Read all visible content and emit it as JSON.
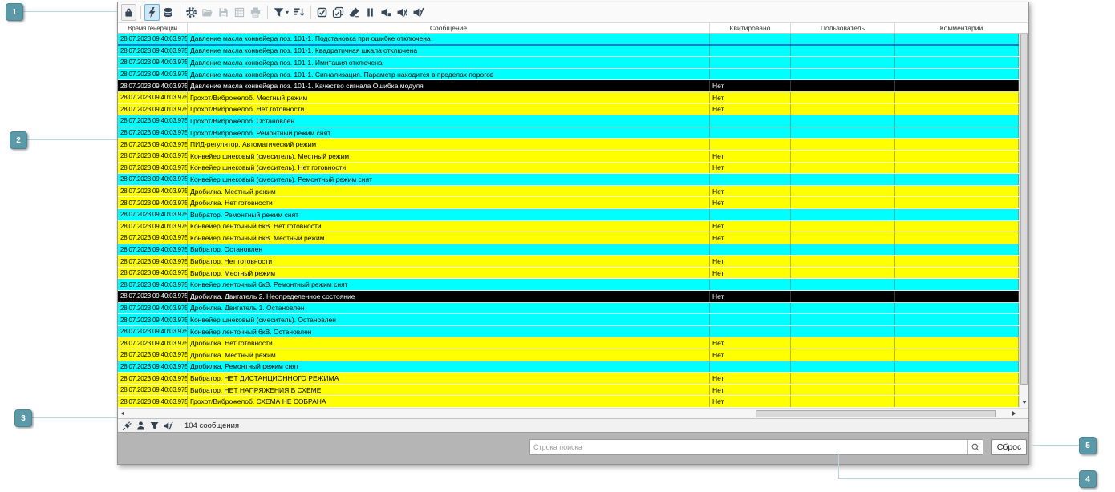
{
  "toolbar": {
    "groups": [
      [
        {
          "icon": "lock",
          "state": "framed"
        }
      ],
      [
        {
          "icon": "flash",
          "state": "active"
        },
        {
          "icon": "database",
          "state": "normal"
        }
      ],
      [
        {
          "icon": "gear",
          "state": "normal"
        },
        {
          "icon": "folder-open",
          "state": "disabled"
        },
        {
          "icon": "save",
          "state": "disabled"
        },
        {
          "icon": "export-excel",
          "state": "disabled"
        },
        {
          "icon": "print",
          "state": "disabled"
        }
      ],
      [
        {
          "icon": "filter",
          "state": "normal"
        },
        {
          "icon": "sort-desc",
          "state": "normal"
        }
      ],
      [
        {
          "icon": "ack-one",
          "state": "normal"
        },
        {
          "icon": "ack-all",
          "state": "normal"
        },
        {
          "icon": "eraser",
          "state": "normal"
        },
        {
          "icon": "pause",
          "state": "normal"
        },
        {
          "icon": "sound-box",
          "state": "normal"
        },
        {
          "icon": "sound-waves",
          "state": "normal"
        },
        {
          "icon": "sound-mute",
          "state": "normal"
        }
      ]
    ]
  },
  "table": {
    "columns": [
      "Время генерации",
      "Сообщение",
      "Квитировано",
      "Пользователь",
      "Комментарий"
    ],
    "rows": [
      {
        "t": "28.07.2023 09:40:03.975",
        "m": "Давление масла конвейера поз. 101-1. Подстановка при ошибке отключена",
        "a": "",
        "c": "c",
        "sel": true
      },
      {
        "t": "28.07.2023 09:40:03.975",
        "m": "Давление масла конвейера поз. 101-1. Квадратичная шкала отключена",
        "a": "",
        "c": "c"
      },
      {
        "t": "28.07.2023 09:40:03.975",
        "m": "Давление масла конвейера поз. 101-1. Имитация отключена",
        "a": "",
        "c": "c"
      },
      {
        "t": "28.07.2023 09:40:03.975",
        "m": "Давление масла конвейера поз. 101-1. Сигнализация. Параметр находится в пределах порогов",
        "a": "",
        "c": "c"
      },
      {
        "t": "28.07.2023 09:40:03.975",
        "m": "Давление масла конвейера поз. 101-1. Качество сигнала Ошибка модуля",
        "a": "Нет",
        "c": "k"
      },
      {
        "t": "28.07.2023 09:40:03.975",
        "m": "Грохот/Виброжелоб. Местный режим",
        "a": "Нет",
        "c": "y"
      },
      {
        "t": "28.07.2023 09:40:03.975",
        "m": "Грохот/Виброжелоб. Нет готовности",
        "a": "Нет",
        "c": "y"
      },
      {
        "t": "28.07.2023 09:40:03.975",
        "m": "Грохот/Виброжелоб. Остановлен",
        "a": "",
        "c": "c"
      },
      {
        "t": "28.07.2023 09:40:03.975",
        "m": "Грохот/Виброжелоб. Ремонтный режим снят",
        "a": "",
        "c": "c"
      },
      {
        "t": "28.07.2023 09:40:03.975",
        "m": "ПИД-регулятор. Автоматический режим",
        "a": "",
        "c": "y"
      },
      {
        "t": "28.07.2023 09:40:03.975",
        "m": "Конвейер шнековый (смеситель). Местный режим",
        "a": "Нет",
        "c": "y"
      },
      {
        "t": "28.07.2023 09:40:03.975",
        "m": "Конвейер шнековый (смеситель). Нет готовности",
        "a": "Нет",
        "c": "y"
      },
      {
        "t": "28.07.2023 09:40:03.975",
        "m": "Конвейер шнековый (смеситель). Ремонтный режим снят",
        "a": "",
        "c": "c"
      },
      {
        "t": "28.07.2023 09:40:03.975",
        "m": "Дробилка. Местный режим",
        "a": "Нет",
        "c": "y"
      },
      {
        "t": "28.07.2023 09:40:03.975",
        "m": "Дробилка. Нет готовности",
        "a": "Нет",
        "c": "y"
      },
      {
        "t": "28.07.2023 09:40:03.975",
        "m": "Вибратор. Ремонтный режим снят",
        "a": "",
        "c": "c"
      },
      {
        "t": "28.07.2023 09:40:03.975",
        "m": "Конвейер ленточный 6кВ. Нет готовности",
        "a": "Нет",
        "c": "y"
      },
      {
        "t": "28.07.2023 09:40:03.975",
        "m": "Конвейер ленточный 6кВ. Местный режим",
        "a": "Нет",
        "c": "y"
      },
      {
        "t": "28.07.2023 09:40:03.975",
        "m": "Вибратор. Остановлен",
        "a": "",
        "c": "c"
      },
      {
        "t": "28.07.2023 09:40:03.975",
        "m": "Вибратор. Нет готовности",
        "a": "Нет",
        "c": "y"
      },
      {
        "t": "28.07.2023 09:40:03.975",
        "m": "Вибратор. Местный режим",
        "a": "Нет",
        "c": "y"
      },
      {
        "t": "28.07.2023 09:40:03.975",
        "m": "Конвейер ленточный 6кВ. Ремонтный режим снят",
        "a": "",
        "c": "c"
      },
      {
        "t": "28.07.2023 09:40:03.975",
        "m": "Дробилка. Двигатель 2. Неопределенное состояние",
        "a": "Нет",
        "c": "k"
      },
      {
        "t": "28.07.2023 09:40:03.975",
        "m": "Дробилка. Двигатель 1. Остановлен",
        "a": "",
        "c": "c"
      },
      {
        "t": "28.07.2023 09:40:03.975",
        "m": "Конвейер шнековый (смеситель). Остановлен",
        "a": "",
        "c": "c"
      },
      {
        "t": "28.07.2023 09:40:03.975",
        "m": "Конвейер ленточный 6кВ. Остановлен",
        "a": "",
        "c": "c"
      },
      {
        "t": "28.07.2023 09:40:03.975",
        "m": "Дробилка. Нет готовности",
        "a": "Нет",
        "c": "y"
      },
      {
        "t": "28.07.2023 09:40:03.975",
        "m": "Дробилка. Местный режим",
        "a": "Нет",
        "c": "y"
      },
      {
        "t": "28.07.2023 09:40:03.975",
        "m": "Дробилка. Ремонтный режим снят",
        "a": "",
        "c": "c"
      },
      {
        "t": "28.07.2023 09:40:03.975",
        "m": "Вибратор. НЕТ ДИСТАНЦИОННОГО РЕЖИМА",
        "a": "Нет",
        "c": "y"
      },
      {
        "t": "28.07.2023 09:40:03.975",
        "m": "Вибратор. НЕТ НАПРЯЖЕНИЯ В СХЕМЕ",
        "a": "Нет",
        "c": "y"
      },
      {
        "t": "28.07.2023 09:40:03.975",
        "m": "Грохот/Виброжелоб. СХЕМА НЕ СОБРАНА",
        "a": "Нет",
        "c": "y"
      }
    ]
  },
  "statusbar": {
    "icons": [
      "plug",
      "user",
      "filter",
      "sound-mute"
    ],
    "count": "104 сообщения"
  },
  "search": {
    "placeholder": "Строка поиска",
    "reset": "Сброс"
  },
  "callouts": [
    "1",
    "2",
    "3",
    "4",
    "5"
  ],
  "colors": {
    "row_cyan": "#00ffff",
    "row_yellow": "#ffff00",
    "row_black": "#000000",
    "selection_border": "#1372d6",
    "toolbar_active_bg": "#cfe8f8",
    "toolbar_active_border": "#6fafda",
    "badge": "#5b99a8",
    "callout_line": "#b6d6e0"
  }
}
